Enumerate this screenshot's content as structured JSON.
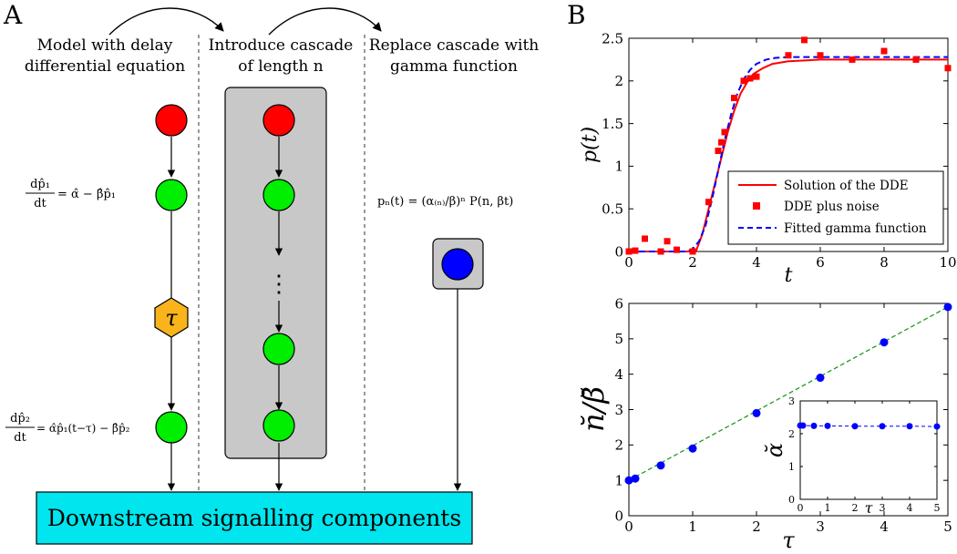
{
  "panel_a": {
    "label": "A",
    "col1_title_1": "Model with delay",
    "col1_title_2": "differential equation",
    "col2_title_1": "Introduce cascade",
    "col2_title_2": "of length n",
    "col3_title_1": "Replace cascade with",
    "col3_title_2": "gamma function",
    "eq1_lhs_num": "dp̂₁",
    "eq1_lhs_den": "dt",
    "eq1_rhs": "= α̂ − β̂p̂₁",
    "eq2_lhs_num": "dp̂₂",
    "eq2_lhs_den": "dt",
    "eq2_rhs": "= α̂p̂₁(t−τ) − β̂p̂₂",
    "eq3": "pₙ(t) = (α₍ₙ₎/β)ⁿ P(n, βt)",
    "delay_symbol": "τ",
    "ellipsis": "⋮",
    "downstream_label": "Downstream signalling components",
    "colors": {
      "red_node": "#ff0000",
      "green_node": "#00ee00",
      "blue_node": "#0000ff",
      "delay_node": "#f8b41a",
      "cascade_box": "#c8c8c8",
      "downstream_box": "#00e5ee"
    }
  },
  "panel_b": {
    "label": "B",
    "chart_data": [
      {
        "type": "line",
        "xlabel": "t",
        "ylabel": "p(t)",
        "xlim": [
          0,
          10
        ],
        "ylim": [
          0,
          2.5
        ],
        "xticks": [
          "0",
          "2",
          "4",
          "6",
          "8",
          "10"
        ],
        "yticks": [
          "0",
          "0.5",
          "1",
          "1.5",
          "2",
          "2.5"
        ],
        "legend_position": "bottom-right",
        "series": [
          {
            "name": "Solution of the DDE",
            "style": "solid",
            "color": "#ff0000",
            "x": [
              0,
              2.1,
              2.3,
              2.5,
              2.7,
              2.9,
              3.1,
              3.3,
              3.5,
              3.7,
              3.9,
              4.2,
              4.5,
              5.0,
              6.0,
              7.0,
              8.0,
              10.0
            ],
            "y": [
              0,
              0,
              0.2,
              0.5,
              0.8,
              1.1,
              1.4,
              1.65,
              1.85,
              1.98,
              2.08,
              2.15,
              2.2,
              2.23,
              2.25,
              2.25,
              2.25,
              2.25
            ]
          },
          {
            "name": "DDE plus noise",
            "style": "markers",
            "color": "#ff0000",
            "x": [
              0,
              0.2,
              0.5,
              1.0,
              1.2,
              1.5,
              2.0,
              2.5,
              2.8,
              2.9,
              3.0,
              3.3,
              3.6,
              3.8,
              4.0,
              5.0,
              5.5,
              6.0,
              7.0,
              8.0,
              9.0,
              10.0
            ],
            "y": [
              0,
              0.01,
              0.15,
              0.0,
              0.12,
              0.02,
              0.0,
              0.58,
              1.18,
              1.28,
              1.4,
              1.8,
              2.0,
              2.03,
              2.05,
              2.3,
              2.48,
              2.3,
              2.25,
              2.35,
              2.25,
              2.15
            ]
          },
          {
            "name": "Fitted gamma function",
            "style": "dashed",
            "color": "#0000ff",
            "x": [
              0,
              1.8,
              2.0,
              2.2,
              2.4,
              2.6,
              2.8,
              3.0,
              3.2,
              3.4,
              3.6,
              3.8,
              4.0,
              4.3,
              4.6,
              5.0,
              6.0,
              7.0,
              8.0,
              10.0
            ],
            "y": [
              0,
              0.0,
              0.03,
              0.12,
              0.3,
              0.6,
              0.95,
              1.3,
              1.6,
              1.85,
              2.02,
              2.13,
              2.2,
              2.25,
              2.27,
              2.28,
              2.28,
              2.28,
              2.28,
              2.28
            ]
          }
        ]
      },
      {
        "type": "scatter",
        "xlabel": "τ",
        "ylabel": "n̆/β̆",
        "xlim": [
          0,
          5
        ],
        "ylim": [
          0,
          6
        ],
        "xticks": [
          "0",
          "1",
          "2",
          "3",
          "4",
          "5"
        ],
        "yticks": [
          "0",
          "1",
          "2",
          "3",
          "4",
          "5",
          "6"
        ],
        "series": [
          {
            "style": "markers",
            "color": "#0000ff",
            "x": [
              0,
              0.1,
              0.5,
              1,
              2,
              3,
              4,
              5
            ],
            "y": [
              1.0,
              1.05,
              1.42,
              1.9,
              2.9,
              3.9,
              4.9,
              5.9
            ]
          },
          {
            "style": "dashed-line",
            "color": "#229922",
            "x": [
              0,
              5
            ],
            "y": [
              1.0,
              5.9
            ]
          }
        ]
      },
      {
        "type": "scatter",
        "inset": true,
        "xlabel": "τ",
        "ylabel": "ᾰ",
        "xlim": [
          0,
          5
        ],
        "ylim": [
          0,
          3
        ],
        "xticks": [
          "0",
          "1",
          "2",
          "3",
          "4",
          "5"
        ],
        "yticks": [
          "0",
          "1",
          "2",
          "3"
        ],
        "series": [
          {
            "style": "markers-dashed",
            "color": "#0000ff",
            "x": [
              0,
              0.1,
              0.5,
              1,
              2,
              3,
              4,
              5
            ],
            "y": [
              2.25,
              2.25,
              2.24,
              2.24,
              2.23,
              2.23,
              2.23,
              2.22
            ]
          }
        ]
      }
    ]
  }
}
